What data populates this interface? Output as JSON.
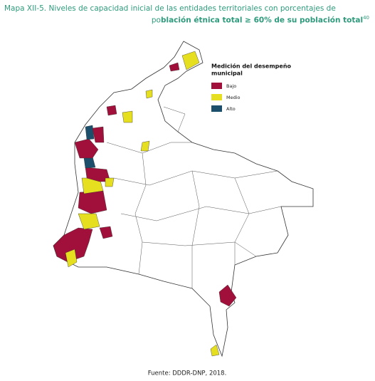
{
  "title": {
    "line1": "Mapa XII-5. Niveles de capacidad inicial de las entidades territoriales con porcentajes de",
    "line2_start": "po",
    "line2_bold": "blación étnica total ≥ 60% de su población total",
    "superscript": "40"
  },
  "legend": {
    "title_line1": "Medición del desempeño",
    "title_line2": "municipal",
    "items": [
      {
        "label": "Bajo",
        "color": "#a0103a"
      },
      {
        "label": "Medio",
        "color": "#e6df1f"
      },
      {
        "label": "Alto",
        "color": "#1b4f6b"
      }
    ]
  },
  "source": "Fuente: DDDR-DNP, 2018."
}
